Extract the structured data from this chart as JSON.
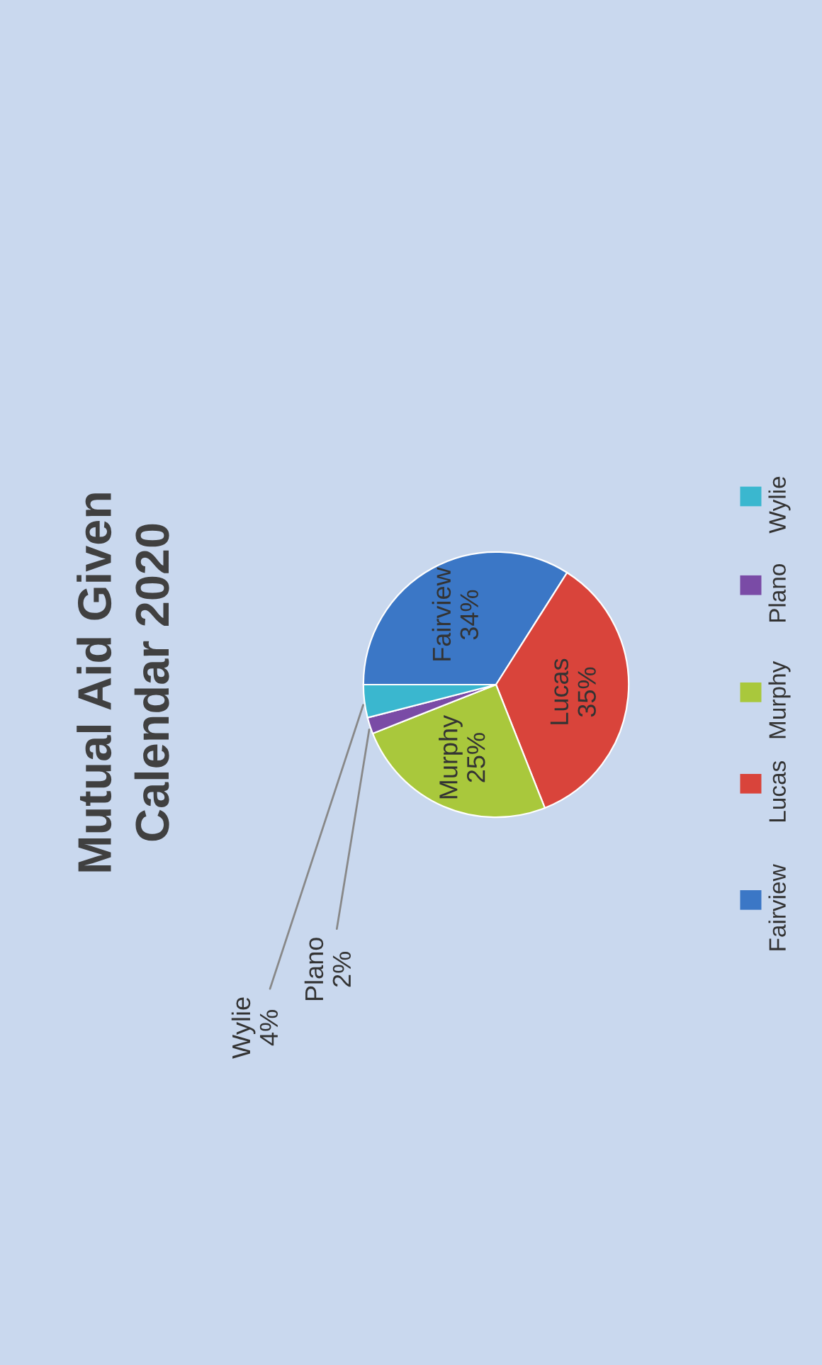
{
  "chart_data": {
    "type": "pie",
    "title": "Mutual Aid Given\nCalendar 2020",
    "categories": [
      "Fairview",
      "Lucas",
      "Murphy",
      "Plano",
      "Wylie"
    ],
    "values": [
      34,
      35,
      25,
      2,
      4
    ],
    "value_labels": [
      "34%",
      "35%",
      "25%",
      "2%",
      "4%"
    ],
    "colors": [
      "#3b77c6",
      "#d9443b",
      "#a9c83c",
      "#7a4ba6",
      "#3ab7cf"
    ],
    "legend": "right"
  }
}
